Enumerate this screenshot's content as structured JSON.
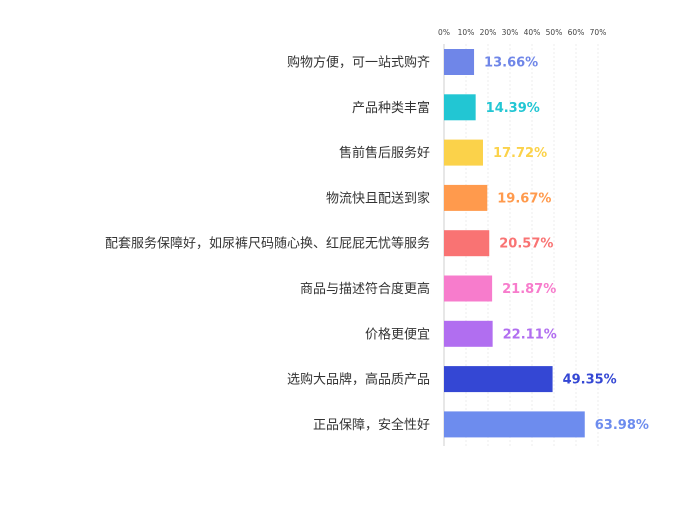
{
  "chart_data": {
    "type": "bar",
    "orientation": "horizontal",
    "title": "",
    "xlabel": "",
    "ylabel": "",
    "xlim": [
      0,
      70
    ],
    "x_ticks": [
      "0%",
      "10%",
      "20%",
      "30%",
      "40%",
      "50%",
      "60%",
      "70%"
    ],
    "x_axis_position": "top",
    "grid": true,
    "legend": "none",
    "categories": [
      "购物方便，可一站式购齐",
      "产品种类丰富",
      "售前售后服务好",
      "物流快且配送到家",
      "配套服务保障好，如尿裤尺码随心换、红屁屁无忧等服务",
      "商品与描述符合度更高",
      "价格更便宜",
      "选购大品牌，高品质产品",
      "正品保障，安全性好"
    ],
    "values": [
      13.66,
      14.39,
      17.72,
      19.67,
      20.57,
      21.87,
      22.11,
      49.35,
      63.98
    ],
    "value_labels": [
      "13.66%",
      "14.39%",
      "17.72%",
      "19.67%",
      "20.57%",
      "21.87%",
      "22.11%",
      "49.35%",
      "63.98%"
    ],
    "bar_colors": [
      "#6f86e8",
      "#22c6d3",
      "#fbd24a",
      "#ff9a4d",
      "#f97373",
      "#f77ccc",
      "#b16ef0",
      "#3447d4",
      "#6d8cee"
    ]
  }
}
